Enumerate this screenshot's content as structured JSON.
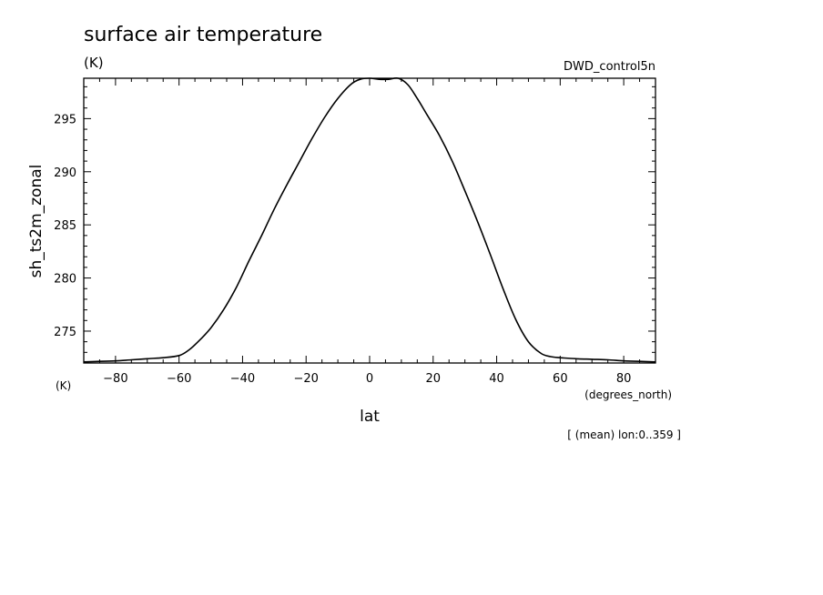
{
  "chart_data": {
    "type": "line",
    "title": "surface air temperature",
    "title_units": "(K)",
    "dataset": "DWD_control5n",
    "xlabel": "lat",
    "xunits": "(degrees_north)",
    "ylabel": "sh_ts2m_zonal",
    "yunits": "(K)",
    "note": "[ (mean) lon:0..359 ]",
    "xlim": [
      -90,
      90
    ],
    "ylim": [
      272,
      298.8
    ],
    "xticks": [
      -80,
      -60,
      -40,
      -20,
      0,
      20,
      40,
      60,
      80
    ],
    "yticks": [
      275,
      280,
      285,
      290,
      295
    ],
    "grid": false,
    "series": [
      {
        "x": [
          -90,
          -85,
          -80,
          -75,
          -70,
          -65,
          -60,
          -57,
          -54,
          -50,
          -46,
          -42,
          -38,
          -34,
          -30,
          -26,
          -22,
          -18,
          -14,
          -10,
          -6,
          -3,
          0,
          3,
          6,
          9,
          12,
          15,
          18,
          22,
          26,
          30,
          34,
          38,
          42,
          46,
          50,
          54,
          57,
          60,
          65,
          70,
          75,
          80,
          85,
          90
        ],
        "y": [
          272.1,
          272.15,
          272.2,
          272.3,
          272.4,
          272.5,
          272.7,
          273.2,
          274.0,
          275.3,
          277.0,
          279.1,
          281.6,
          284.0,
          286.5,
          288.8,
          291.0,
          293.2,
          295.2,
          296.9,
          298.2,
          298.7,
          298.8,
          298.7,
          298.7,
          298.8,
          298.2,
          296.9,
          295.4,
          293.4,
          291.0,
          288.2,
          285.3,
          282.2,
          279.0,
          276.1,
          274.0,
          272.9,
          272.6,
          272.5,
          272.4,
          272.35,
          272.3,
          272.2,
          272.15,
          272.1
        ]
      }
    ]
  }
}
